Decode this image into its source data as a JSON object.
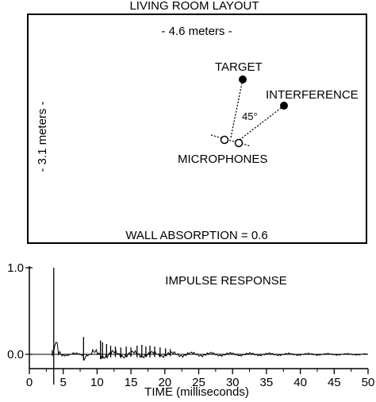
{
  "layout": {
    "title": "LIVING ROOM LAYOUT",
    "width_label": "- 4.6 meters -",
    "height_label": "- 3.1 meters -",
    "target_label": "TARGET",
    "interference_label": "INTERFERENCE",
    "angle_label": "45°",
    "microphones_label": "MICROPHONES",
    "absorption_label": "WALL ABSORPTION = 0.6"
  },
  "chart_data": {
    "type": "line",
    "title": "IMPULSE RESPONSE",
    "xlabel": "TIME (milliseconds)",
    "ylabel": "",
    "xlim": [
      0,
      50
    ],
    "ylim": [
      -0.1,
      1.0
    ],
    "x_ticks": [
      "0",
      "5",
      "10",
      "15",
      "20",
      "25",
      "30",
      "35",
      "40",
      "45",
      "50"
    ],
    "y_ticks": [
      "1.0",
      "0.0"
    ],
    "peaks": [
      {
        "t": 3.4,
        "value": 0.05
      },
      {
        "t": 3.6,
        "value": 1.0
      },
      {
        "t": 8.0,
        "value": 0.2
      },
      {
        "t": 10.5,
        "value": 0.16
      },
      {
        "t": 10.8,
        "value": 0.14
      },
      {
        "t": 11.4,
        "value": 0.12
      },
      {
        "t": 12.0,
        "value": 0.1
      },
      {
        "t": 12.7,
        "value": 0.09
      },
      {
        "t": 13.5,
        "value": 0.08
      },
      {
        "t": 14.3,
        "value": 0.09
      },
      {
        "t": 15.0,
        "value": 0.08
      },
      {
        "t": 15.9,
        "value": 0.1
      },
      {
        "t": 16.6,
        "value": 0.11
      },
      {
        "t": 17.2,
        "value": 0.09
      },
      {
        "t": 17.8,
        "value": 0.1
      },
      {
        "t": 18.5,
        "value": 0.09
      },
      {
        "t": 19.3,
        "value": 0.08
      },
      {
        "t": 20.1,
        "value": 0.07
      },
      {
        "t": 20.8,
        "value": 0.06
      }
    ]
  }
}
